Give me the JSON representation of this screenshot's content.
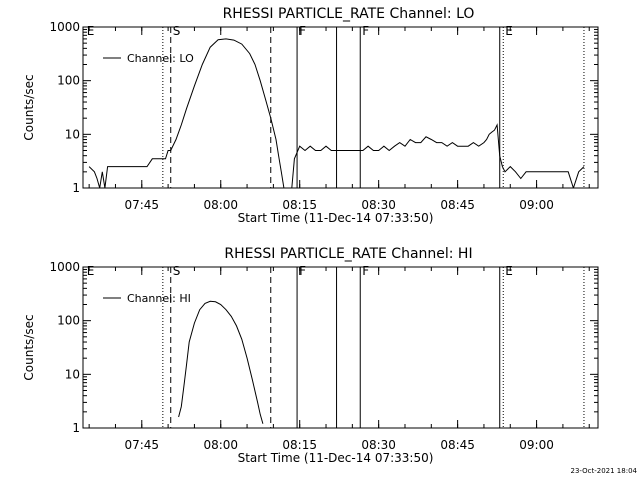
{
  "footer": {
    "stamp": "23-Oct-2021 18:04"
  },
  "chart_data": [
    {
      "type": "line",
      "title": "RHESSI PARTICLE_RATE Channel: LO",
      "xlabel": "Start Time (11-Dec-14 07:33:50)",
      "ylabel": "Counts/sec",
      "yscale": "log",
      "ylim": [
        1,
        1000
      ],
      "yticks": [
        "1",
        "10",
        "100",
        "1000"
      ],
      "xlim": [
        "07:33:50",
        "09:11:40"
      ],
      "xticks": [
        "07:45",
        "08:00",
        "08:15",
        "08:30",
        "08:45",
        "09:00"
      ],
      "legend": {
        "position": "top-left",
        "label": "Channel: LO"
      },
      "markers": [
        {
          "label": "E",
          "time": "07:34:10",
          "style": "none"
        },
        {
          "label": "",
          "time": "07:49:00",
          "style": "dotted"
        },
        {
          "label": "S",
          "time": "07:50:30",
          "style": "dashed"
        },
        {
          "label": "",
          "time": "08:09:30",
          "style": "dashed"
        },
        {
          "label": "F",
          "time": "08:14:30",
          "style": "solid"
        },
        {
          "label": "",
          "time": "08:22:00",
          "style": "solid"
        },
        {
          "label": "F",
          "time": "08:26:30",
          "style": "solid"
        },
        {
          "label": "",
          "time": "08:53:00",
          "style": "solid"
        },
        {
          "label": "E",
          "time": "08:53:40",
          "style": "dotted"
        },
        {
          "label": "",
          "time": "09:09:00",
          "style": "dotted"
        }
      ],
      "series": [
        {
          "name": "Channel: LO",
          "x": [
            "07:35:00",
            "07:36:00",
            "07:36:30",
            "07:37:00",
            "07:37:30",
            "07:38:00",
            "07:38:30",
            "07:39:00",
            "07:40:00",
            "07:41:00",
            "07:42:00",
            "07:43:00",
            "07:44:00",
            "07:45:00",
            "07:46:00",
            "07:47:00",
            "07:48:00",
            "07:48:30",
            "07:49:30",
            "07:50:00",
            "07:50:30",
            "07:51:30",
            "07:52:30",
            "07:53:30",
            "07:55:00",
            "07:56:30",
            "07:58:00",
            "07:59:30",
            "08:01:00",
            "08:02:30",
            "08:04:00",
            "08:05:30",
            "08:06:30",
            "08:07:30",
            "08:08:30",
            "08:09:30",
            "08:10:30",
            "08:11:00",
            "08:11:30",
            "08:12:00",
            "08:12:30",
            "08:13:00",
            "08:13:30",
            "08:14:00",
            "08:15:00",
            "08:16:00",
            "08:17:00",
            "08:18:00",
            "08:19:00",
            "08:20:00",
            "08:21:00",
            "08:22:00",
            "08:23:00",
            "08:24:00",
            "08:25:00",
            "08:26:00",
            "08:27:00",
            "08:28:00",
            "08:29:00",
            "08:30:00",
            "08:31:00",
            "08:32:00",
            "08:33:00",
            "08:34:00",
            "08:35:00",
            "08:36:00",
            "08:37:00",
            "08:38:00",
            "08:39:00",
            "08:40:00",
            "08:41:00",
            "08:42:00",
            "08:43:00",
            "08:44:00",
            "08:45:00",
            "08:46:00",
            "08:47:00",
            "08:48:00",
            "08:49:00",
            "08:50:00",
            "08:50:30",
            "08:51:00",
            "08:51:30",
            "08:52:00",
            "08:52:30",
            "08:53:00",
            "08:53:30",
            "08:54:00",
            "08:55:00",
            "08:56:00",
            "08:57:00",
            "08:58:00",
            "08:59:00",
            "09:00:00",
            "09:01:00",
            "09:02:00",
            "09:03:00",
            "09:04:00",
            "09:05:00",
            "09:06:00",
            "09:07:00",
            "09:08:00",
            "09:09:00"
          ],
          "y": [
            2.5,
            2.0,
            1.5,
            1.0,
            2.0,
            1.0,
            2.5,
            2.5,
            2.5,
            2.5,
            2.5,
            2.5,
            2.5,
            2.5,
            2.5,
            3.5,
            3.5,
            3.5,
            3.5,
            5.0,
            5.0,
            8.0,
            15,
            30,
            80,
            200,
            420,
            580,
            600,
            570,
            480,
            320,
            200,
            100,
            45,
            20,
            8,
            4,
            2,
            1,
            1,
            1,
            1,
            3.5,
            6,
            5,
            6,
            5,
            5,
            6,
            5,
            5,
            5,
            5,
            5,
            5,
            5,
            6,
            5,
            5,
            6,
            5,
            6,
            7,
            6,
            8,
            7,
            7,
            9,
            8,
            7,
            7,
            6,
            7,
            6,
            6,
            6,
            7,
            6,
            7,
            8,
            10,
            11,
            12,
            15,
            4,
            2.5,
            2,
            2.5,
            2,
            1.5,
            2,
            2,
            2,
            2,
            2,
            2,
            2,
            2,
            2,
            1,
            2,
            2.5
          ]
        }
      ]
    },
    {
      "type": "line",
      "title": "RHESSI PARTICLE_RATE Channel: HI",
      "xlabel": "Start Time (11-Dec-14 07:33:50)",
      "ylabel": "Counts/sec",
      "yscale": "log",
      "ylim": [
        1,
        1000
      ],
      "yticks": [
        "1",
        "10",
        "100",
        "1000"
      ],
      "xlim": [
        "07:33:50",
        "09:11:40"
      ],
      "xticks": [
        "07:45",
        "08:00",
        "08:15",
        "08:30",
        "08:45",
        "09:00"
      ],
      "legend": {
        "position": "top-left",
        "label": "Channel: HI"
      },
      "markers": [
        {
          "label": "E",
          "time": "07:34:10",
          "style": "none"
        },
        {
          "label": "",
          "time": "07:49:00",
          "style": "dotted"
        },
        {
          "label": "S",
          "time": "07:50:30",
          "style": "dashed"
        },
        {
          "label": "",
          "time": "08:09:30",
          "style": "dashed"
        },
        {
          "label": "F",
          "time": "08:14:30",
          "style": "solid"
        },
        {
          "label": "",
          "time": "08:22:00",
          "style": "solid"
        },
        {
          "label": "F",
          "time": "08:26:30",
          "style": "solid"
        },
        {
          "label": "",
          "time": "08:53:00",
          "style": "solid"
        },
        {
          "label": "E",
          "time": "08:53:40",
          "style": "dotted"
        },
        {
          "label": "",
          "time": "09:09:00",
          "style": "dotted"
        }
      ],
      "series": [
        {
          "name": "Channel: HI",
          "x": [
            "07:52:00",
            "07:52:30",
            "07:53:00",
            "07:53:30",
            "07:54:00",
            "07:55:00",
            "07:56:00",
            "07:57:00",
            "07:58:00",
            "07:59:00",
            "08:00:00",
            "08:01:00",
            "08:02:00",
            "08:03:00",
            "08:04:00",
            "08:05:00",
            "08:06:00",
            "08:07:00",
            "08:07:30",
            "08:08:00"
          ],
          "y": [
            1.6,
            2.5,
            6,
            15,
            40,
            90,
            160,
            210,
            230,
            225,
            200,
            160,
            120,
            80,
            45,
            20,
            8,
            3,
            1.8,
            1.2
          ]
        }
      ]
    }
  ]
}
